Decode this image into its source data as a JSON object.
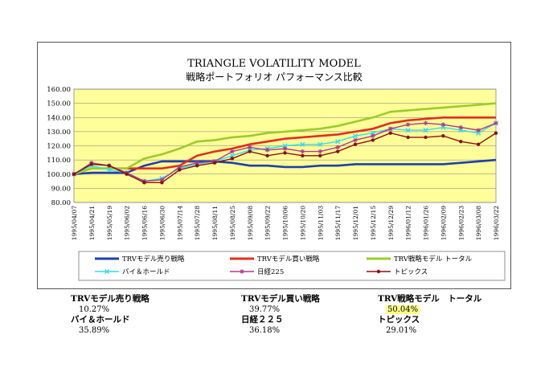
{
  "chart_data": {
    "type": "line",
    "title": "TRIANGLE VOLATILITY MODEL",
    "subtitle": "戦略ポートフォリオ パフォーマンス比較",
    "ylim": [
      80,
      160
    ],
    "yticks": [
      "80.00",
      "90.00",
      "100.00",
      "110.00",
      "120.00",
      "130.00",
      "140.00",
      "150.00",
      "160.00"
    ],
    "grid": true,
    "legend_position": "bottom",
    "x": [
      "1995/04/07",
      "1995/04/21",
      "1995/05/19",
      "1995/06/02",
      "1995/06/16",
      "1995/06/30",
      "1995/07/14",
      "1995/07/28",
      "1995/08/11",
      "1995/08/25",
      "1995/09/08",
      "1995/09/22",
      "1995/10/06",
      "1995/10/20",
      "1995/11/03",
      "1995/11/17",
      "1995/12/01",
      "1995/12/15",
      "1995/12/29",
      "1996/01/12",
      "1996/01/26",
      "1996/02/09",
      "1996/02/23",
      "1996/03/08",
      "1996/03/22"
    ],
    "series": [
      {
        "name": "TRVモデル売り戦略",
        "color": "#1f3fb0",
        "marker": "none",
        "values": [
          100,
          101,
          101,
          101,
          106,
          109,
          109,
          109,
          109,
          108,
          106,
          106,
          105,
          105,
          106,
          106,
          107,
          107,
          107,
          107,
          107,
          107,
          108,
          109,
          110
        ]
      },
      {
        "name": "TRVモデル買い戦略",
        "color": "#e0301e",
        "marker": "none",
        "values": [
          100,
          104,
          104,
          104,
          104,
          104,
          106,
          113,
          116,
          118,
          121,
          123,
          125,
          126,
          127,
          128,
          130,
          132,
          136,
          138,
          139,
          140,
          140,
          140,
          140
        ]
      },
      {
        "name": "TRV戦略モデル トータル",
        "color": "#9ccc2c",
        "marker": "none",
        "values": [
          100,
          104,
          104,
          104,
          111,
          114,
          118,
          123,
          124,
          126,
          127,
          129,
          130,
          131,
          132,
          134,
          137,
          140,
          144,
          145,
          146,
          147,
          148,
          149,
          150
        ]
      },
      {
        "name": "バイ＆ホールド",
        "color": "#33dcec",
        "marker": "x",
        "values": [
          100,
          106,
          103,
          101,
          95,
          97,
          104,
          107,
          109,
          113,
          117,
          118,
          120,
          121,
          121,
          123,
          127,
          129,
          132,
          131,
          131,
          133,
          131,
          129,
          136
        ]
      },
      {
        "name": "日経225",
        "color": "#b03a8a",
        "marker": "star",
        "values": [
          100,
          108,
          106,
          101,
          95,
          96,
          105,
          108,
          109,
          116,
          119,
          117,
          118,
          116,
          116,
          119,
          124,
          127,
          132,
          135,
          136,
          135,
          133,
          131,
          136
        ]
      },
      {
        "name": "トピックス",
        "color": "#8b1010",
        "marker": "circle",
        "values": [
          100,
          107,
          106,
          100,
          94,
          94,
          103,
          106,
          108,
          111,
          116,
          113,
          115,
          113,
          113,
          116,
          121,
          124,
          129,
          126,
          126,
          127,
          123,
          121,
          129
        ]
      }
    ]
  },
  "summary": [
    {
      "label": "TRVモデル売り戦略",
      "value": "10.27%"
    },
    {
      "label": "TRVモデル買い戦略",
      "value": "39.77%"
    },
    {
      "label": "TRV戦略モデル　トータル",
      "value": "50.04%"
    },
    {
      "label": "バイ＆ホールド",
      "value": "35.89%"
    },
    {
      "label": "日経２２５",
      "value": "36.18%"
    },
    {
      "label": "トピックス",
      "value": "29.01%"
    }
  ],
  "colors": {
    "plot_bg": "#ffff99",
    "frame_border": "#555555"
  }
}
